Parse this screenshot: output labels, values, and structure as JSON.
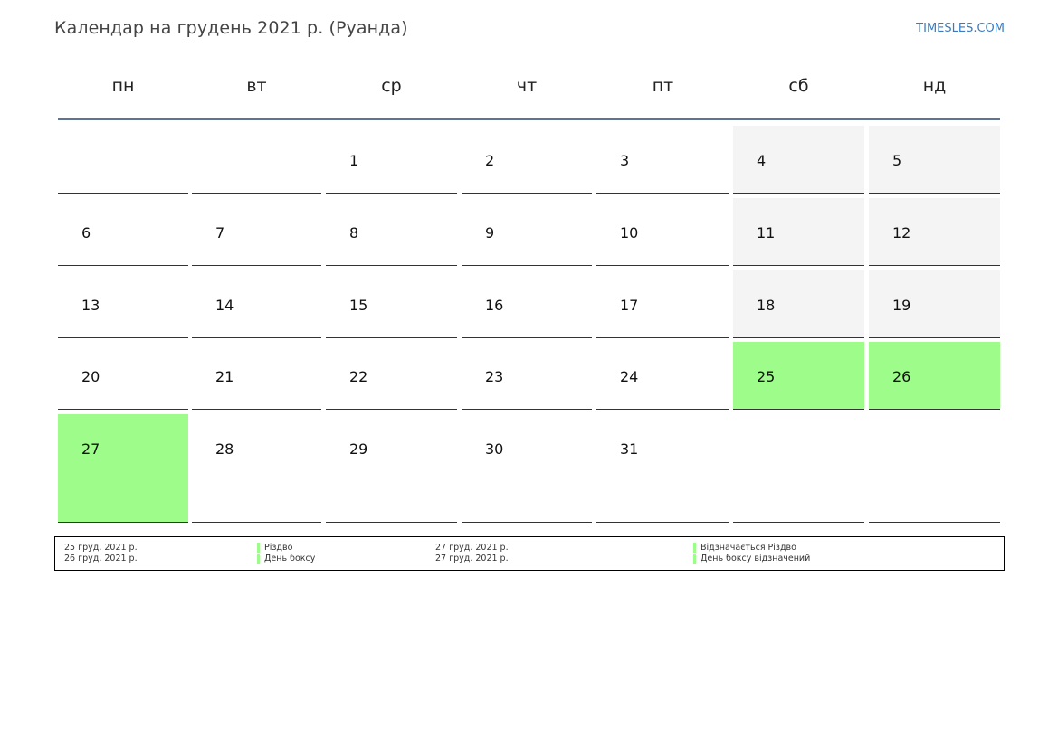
{
  "header": {
    "title": "Календар на грудень 2021 р. (Руанда)",
    "site": "TIMESLES.COM"
  },
  "weekdays": [
    "пн",
    "вт",
    "ср",
    "чт",
    "пт",
    "сб",
    "нд"
  ],
  "weeks": [
    [
      "",
      "",
      "1",
      "2",
      "3",
      "4",
      "5"
    ],
    [
      "6",
      "7",
      "8",
      "9",
      "10",
      "11",
      "12"
    ],
    [
      "13",
      "14",
      "15",
      "16",
      "17",
      "18",
      "19"
    ],
    [
      "20",
      "21",
      "22",
      "23",
      "24",
      "25",
      "26"
    ],
    [
      "27",
      "28",
      "29",
      "30",
      "31",
      "",
      ""
    ]
  ],
  "holidays": [
    "25",
    "26",
    "27"
  ],
  "colors": {
    "holiday": "#9dfc8a",
    "weekend": "#f4f4f4",
    "header_rule": "#5b7592",
    "link": "#3a7bbf"
  },
  "legend": {
    "left": [
      {
        "date": "25 груд. 2021 р.",
        "name": "Різдво"
      },
      {
        "date": "26 груд. 2021 р.",
        "name": "День боксу"
      }
    ],
    "right": [
      {
        "date": "27 груд. 2021 р.",
        "name": "Відзначається Різдво"
      },
      {
        "date": "27 груд. 2021 р.",
        "name": "День боксу відзначений"
      }
    ]
  }
}
